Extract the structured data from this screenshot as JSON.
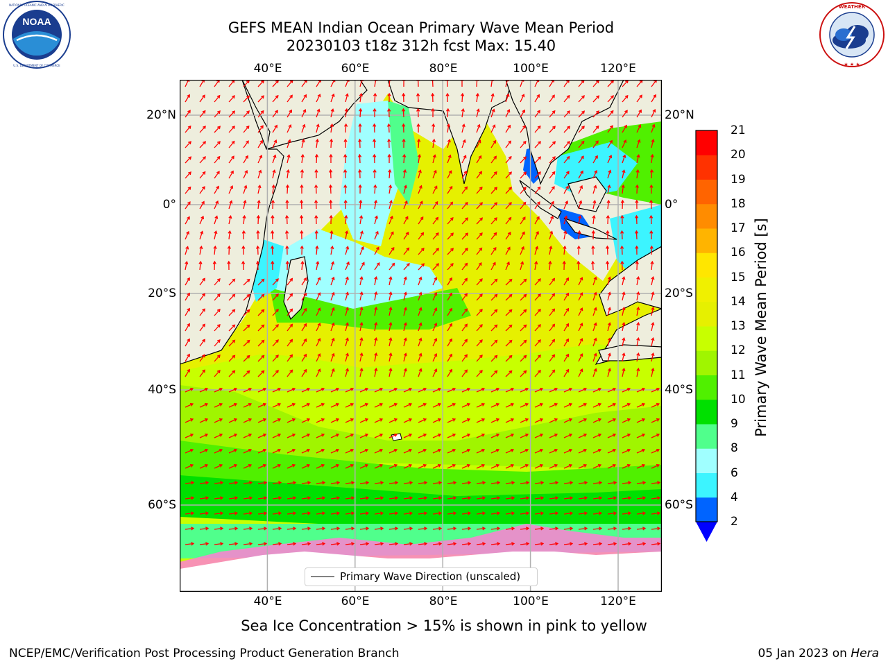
{
  "title": {
    "line1": "GEFS MEAN Indian Ocean Primary Wave Mean Period",
    "line2": "20230103 t18z 312h fcst   Max: 15.40"
  },
  "logos": {
    "left": {
      "name": "NOAA",
      "ring_text": "NATIONAL OCEANIC AND ATMOSPHERIC ADMINISTRATION · U.S. DEPARTMENT OF COMMERCE"
    },
    "right": {
      "name": "National Weather Service",
      "ring_text": "NATIONAL WEATHER SERVICE"
    }
  },
  "map": {
    "lon_ticks": [
      "40°E",
      "60°E",
      "80°E",
      "100°E",
      "120°E"
    ],
    "lon_values": [
      40,
      60,
      80,
      100,
      120
    ],
    "lat_ticks": [
      "20°N",
      "0°",
      "20°S",
      "40°S",
      "60°S"
    ],
    "lat_values": [
      20,
      0,
      -20,
      -40,
      -60
    ],
    "extent": {
      "lon": [
        20,
        130
      ],
      "lat": [
        -70,
        28
      ]
    },
    "legend_label": "Primary Wave Direction (unscaled)",
    "arrow_color": "#ff0000",
    "land_color": "#eeeedd"
  },
  "colorbar": {
    "label": "Primary Wave Mean Period [s]",
    "levels": [
      "2",
      "4",
      "6",
      "8",
      "9",
      "10",
      "11",
      "12",
      "13",
      "14",
      "15",
      "16",
      "17",
      "18",
      "19",
      "20",
      "21"
    ],
    "colors": [
      "#0064ff",
      "#00e6ff",
      "#3cf4ff",
      "#a0ffff",
      "#50ff8c",
      "#00e000",
      "#50f000",
      "#a0f500",
      "#c8ff00",
      "#e6f000",
      "#f0f000",
      "#ffe600",
      "#ffb400",
      "#ff8c00",
      "#ff6400",
      "#ff3200",
      "#ff0000"
    ],
    "under_color": "#0000ff"
  },
  "ice_note": "Sea Ice Concentration > 15% is shown in pink to yellow",
  "footer": {
    "left": "NCEP/EMC/Verification Post Processing Product Generation Branch",
    "right_date": "05 Jan 2023 on ",
    "right_machine": "Hera"
  }
}
